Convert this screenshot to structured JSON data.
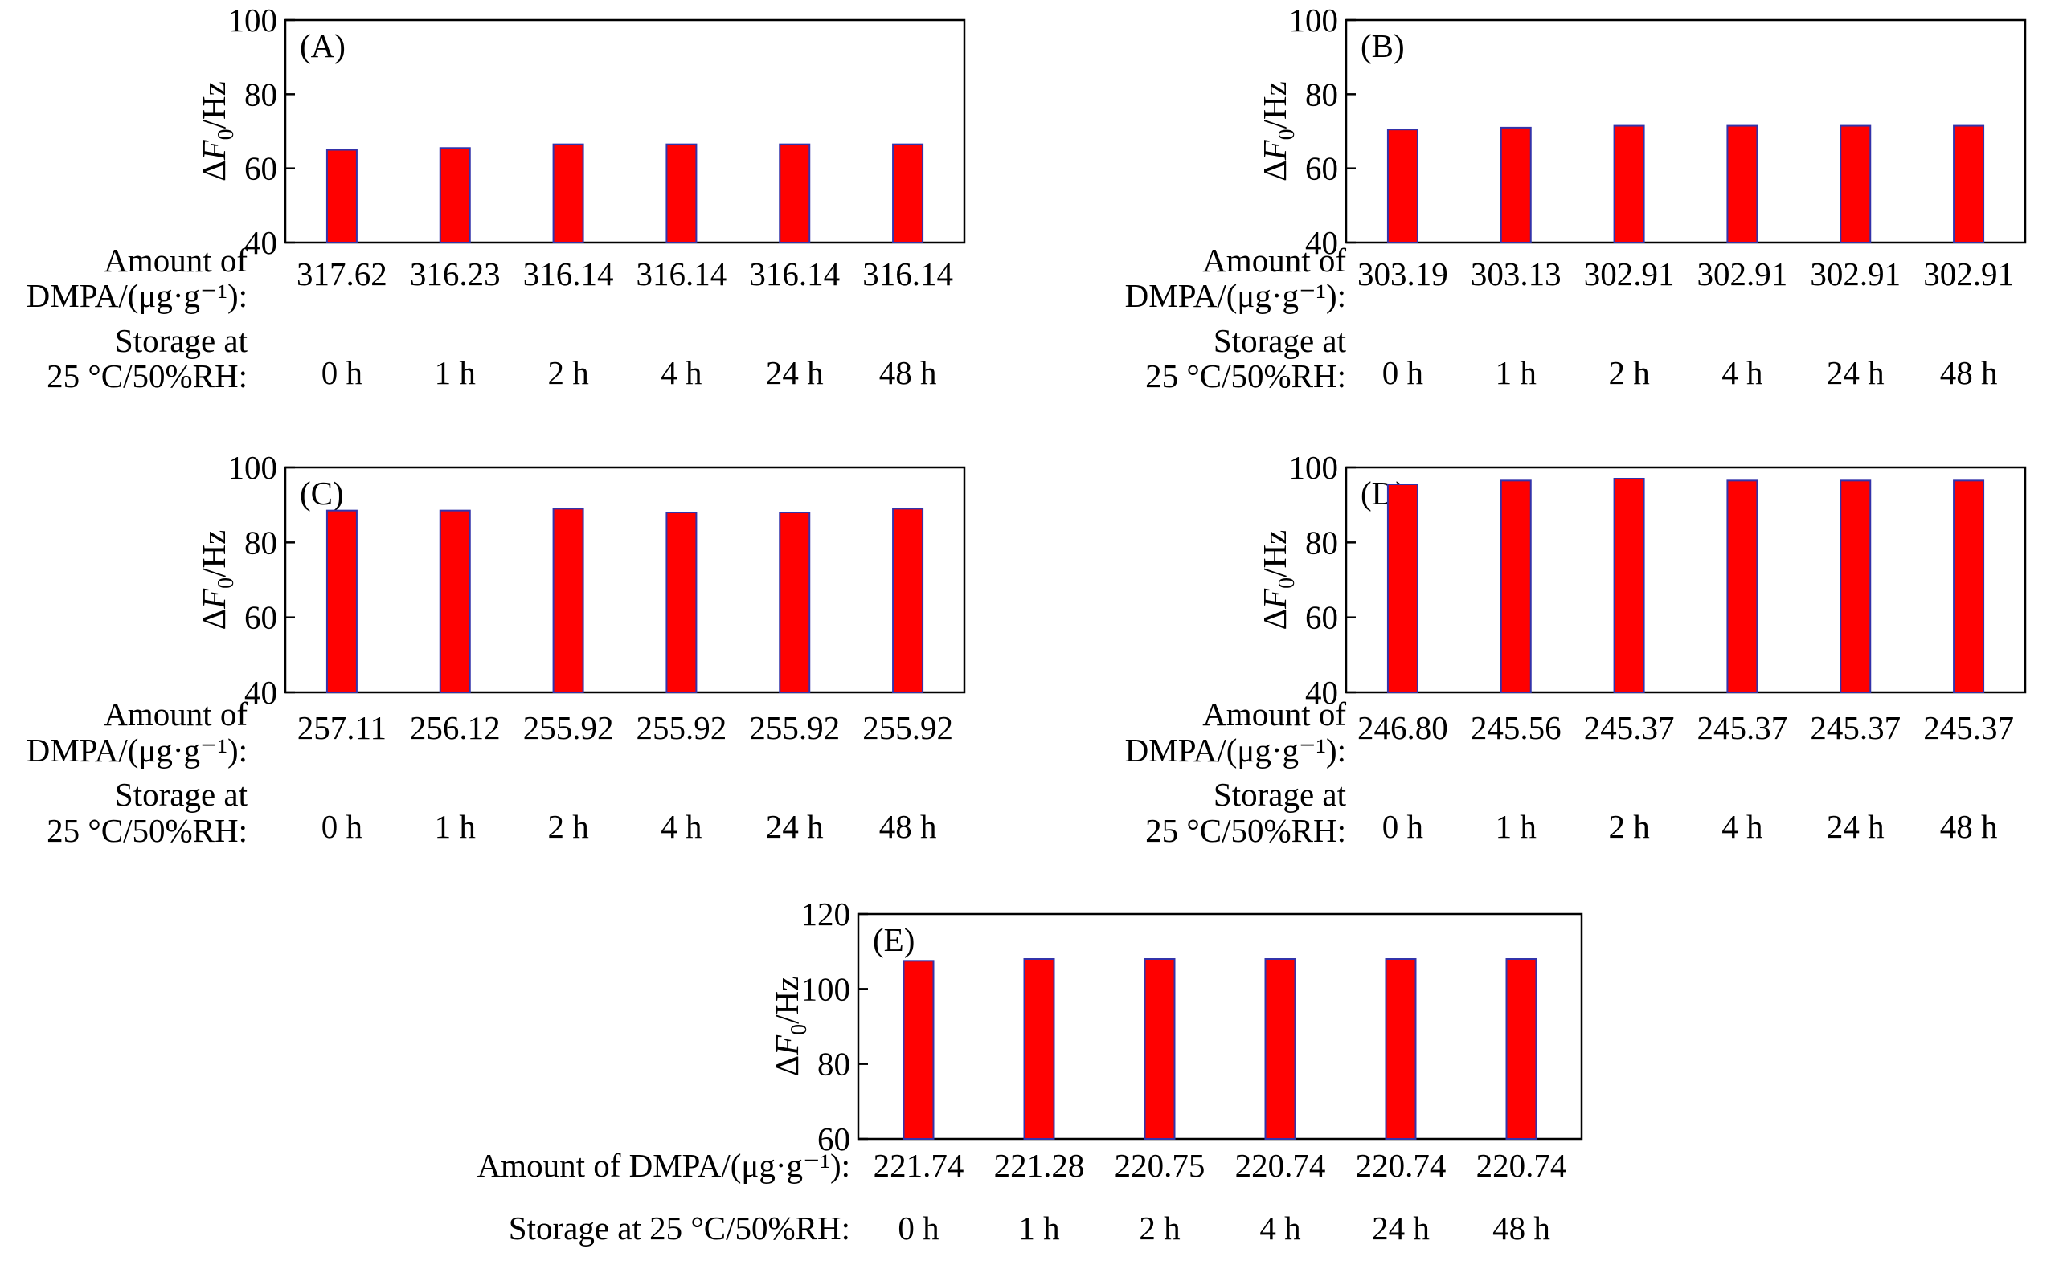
{
  "figure": {
    "panels": 5
  },
  "chart_data": [
    {
      "type": "bar",
      "panel_label": "(A)",
      "ylabel_delta": "ΔF",
      "ylabel_sub": "0",
      "ylabel_unit": "/Hz",
      "ylim": [
        40,
        100
      ],
      "yticks": [
        "40",
        "60",
        "80",
        "100"
      ],
      "categories": [
        "0 h",
        "1 h",
        "2 h",
        "4 h",
        "24 h",
        "48 h"
      ],
      "values": [
        65,
        65.5,
        66.5,
        66.5,
        66.5,
        66.5
      ],
      "amounts": [
        "317.62",
        "316.23",
        "316.14",
        "316.14",
        "316.14",
        "316.14"
      ],
      "row1_label": [
        "Amount of",
        "DMPA/(μg·g⁻¹):"
      ],
      "row2_label": [
        "Storage at",
        "25 °C/50%RH:"
      ],
      "bar_color": "#ff0000",
      "bar_edge_color": "#3333aa"
    },
    {
      "type": "bar",
      "panel_label": "(B)",
      "ylabel_delta": "ΔF",
      "ylabel_sub": "0",
      "ylabel_unit": "/Hz",
      "ylim": [
        40,
        100
      ],
      "yticks": [
        "40",
        "60",
        "80",
        "100"
      ],
      "categories": [
        "0 h",
        "1 h",
        "2 h",
        "4 h",
        "24 h",
        "48 h"
      ],
      "values": [
        70.5,
        71,
        71.5,
        71.5,
        71.5,
        71.5
      ],
      "amounts": [
        "303.19",
        "303.13",
        "302.91",
        "302.91",
        "302.91",
        "302.91"
      ],
      "row1_label": [
        "Amount of",
        "DMPA/(μg·g⁻¹):"
      ],
      "row2_label": [
        "Storage at",
        "25 °C/50%RH:"
      ],
      "bar_color": "#ff0000",
      "bar_edge_color": "#3333aa"
    },
    {
      "type": "bar",
      "panel_label": "(C)",
      "ylabel_delta": "ΔF",
      "ylabel_sub": "0",
      "ylabel_unit": "/Hz",
      "ylim": [
        40,
        100
      ],
      "yticks": [
        "40",
        "60",
        "80",
        "100"
      ],
      "categories": [
        "0 h",
        "1 h",
        "2 h",
        "4 h",
        "24 h",
        "48 h"
      ],
      "values": [
        88.5,
        88.5,
        89,
        88,
        88,
        89
      ],
      "amounts": [
        "257.11",
        "256.12",
        "255.92",
        "255.92",
        "255.92",
        "255.92"
      ],
      "row1_label": [
        "Amount of",
        "DMPA/(μg·g⁻¹):"
      ],
      "row2_label": [
        "Storage at",
        "25 °C/50%RH:"
      ],
      "bar_color": "#ff0000",
      "bar_edge_color": "#3333aa"
    },
    {
      "type": "bar",
      "panel_label": "(D)",
      "ylabel_delta": "ΔF",
      "ylabel_sub": "0",
      "ylabel_unit": "/Hz",
      "ylim": [
        40,
        100
      ],
      "yticks": [
        "40",
        "60",
        "80",
        "100"
      ],
      "categories": [
        "0 h",
        "1 h",
        "2 h",
        "4 h",
        "24 h",
        "48 h"
      ],
      "values": [
        95.5,
        96.5,
        97,
        96.5,
        96.5,
        96.5
      ],
      "amounts": [
        "246.80",
        "245.56",
        "245.37",
        "245.37",
        "245.37",
        "245.37"
      ],
      "row1_label": [
        "Amount of",
        "DMPA/(μg·g⁻¹):"
      ],
      "row2_label": [
        "Storage at",
        "25 °C/50%RH:"
      ],
      "bar_color": "#ff0000",
      "bar_edge_color": "#3333aa"
    },
    {
      "type": "bar",
      "panel_label": "(E)",
      "ylabel_delta": "ΔF",
      "ylabel_sub": "0",
      "ylabel_unit": "/Hz",
      "ylim": [
        60,
        120
      ],
      "yticks": [
        "60",
        "80",
        "100",
        "120"
      ],
      "categories": [
        "0 h",
        "1 h",
        "2 h",
        "4 h",
        "24 h",
        "48 h"
      ],
      "values": [
        107.5,
        108,
        108,
        108,
        108,
        108
      ],
      "amounts": [
        "221.74",
        "221.28",
        "220.75",
        "220.74",
        "220.74",
        "220.74"
      ],
      "row1_label": [
        "Amount of DMPA/(μg·g⁻¹):"
      ],
      "row2_label": [
        "Storage at 25 °C/50%RH:"
      ],
      "bar_color": "#ff0000",
      "bar_edge_color": "#3333aa"
    }
  ]
}
